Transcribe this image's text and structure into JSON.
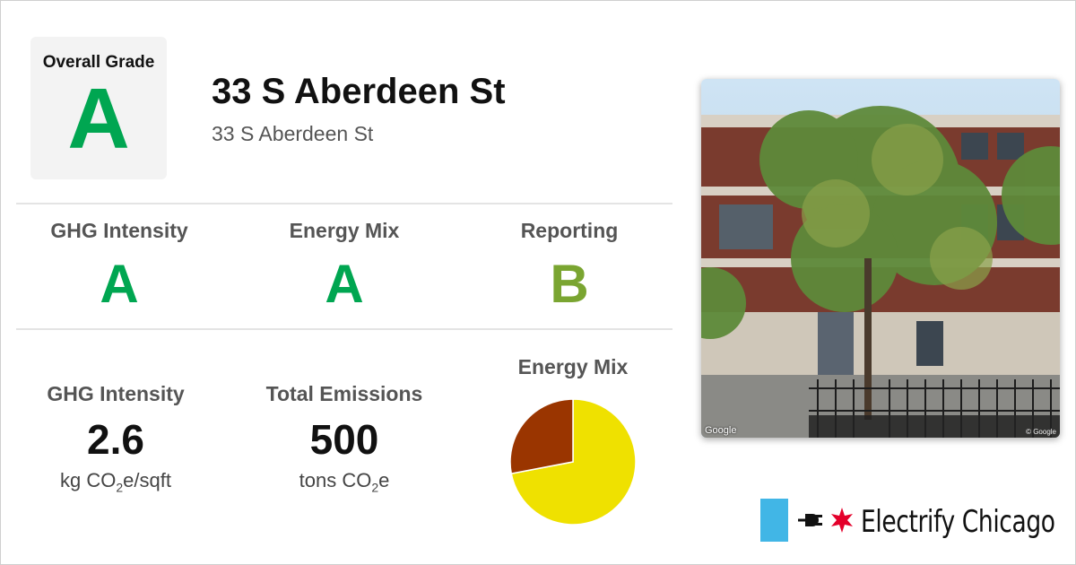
{
  "building": {
    "title": "33 S Aberdeen St",
    "address": "33 S Aberdeen St"
  },
  "overall": {
    "label": "Overall Grade",
    "grade": "A"
  },
  "grades": [
    {
      "label": "GHG Intensity",
      "grade": "A",
      "color": "#00a651"
    },
    {
      "label": "Energy Mix",
      "grade": "A",
      "color": "#00a651"
    },
    {
      "label": "Reporting",
      "grade": "B",
      "color": "#7aa531"
    }
  ],
  "stats": {
    "ghg": {
      "label": "GHG Intensity",
      "value": "2.6",
      "unit_pre": "kg CO",
      "unit_sub": "2",
      "unit_post": "e/sqft"
    },
    "emissions": {
      "label": "Total Emissions",
      "value": "500",
      "unit_pre": "tons CO",
      "unit_sub": "2",
      "unit_post": "e"
    }
  },
  "energy_mix": {
    "title": "Energy Mix",
    "slices": [
      {
        "name": "electricity",
        "fraction": 0.72,
        "color": "#efe100"
      },
      {
        "name": "gas",
        "fraction": 0.28,
        "color": "#9a3500"
      }
    ]
  },
  "photo": {
    "credit_left": "Google",
    "credit_right": "© Google"
  },
  "brand": {
    "name": "Electrify Chicago",
    "bar_color": "#41b6e6",
    "star_color": "#e4002b"
  }
}
